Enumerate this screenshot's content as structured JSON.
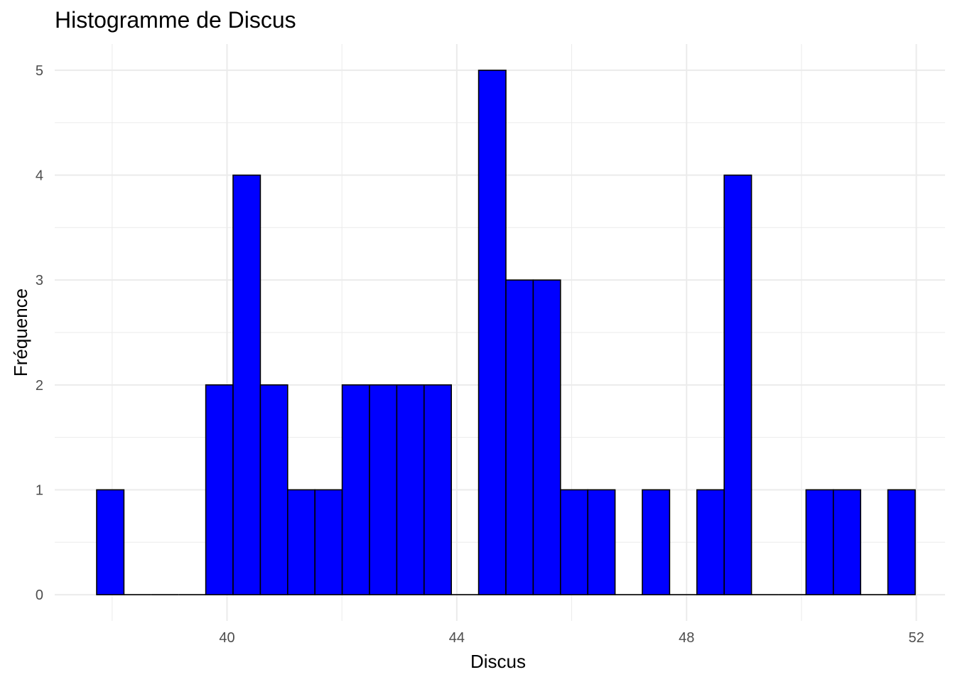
{
  "chart_data": {
    "type": "bar",
    "title": "Histogramme de Discus",
    "xlabel": "Discus",
    "ylabel": "Fréquence",
    "bin_width": 0.475,
    "bins": [
      {
        "start": 37.73,
        "count": 1
      },
      {
        "start": 38.205,
        "count": 0
      },
      {
        "start": 38.68,
        "count": 0
      },
      {
        "start": 39.155,
        "count": 0
      },
      {
        "start": 39.63,
        "count": 2
      },
      {
        "start": 40.105,
        "count": 4
      },
      {
        "start": 40.58,
        "count": 2
      },
      {
        "start": 41.055,
        "count": 1
      },
      {
        "start": 41.53,
        "count": 1
      },
      {
        "start": 42.005,
        "count": 2
      },
      {
        "start": 42.48,
        "count": 2
      },
      {
        "start": 42.955,
        "count": 2
      },
      {
        "start": 43.43,
        "count": 2
      },
      {
        "start": 43.905,
        "count": 0
      },
      {
        "start": 44.38,
        "count": 5
      },
      {
        "start": 44.855,
        "count": 3
      },
      {
        "start": 45.33,
        "count": 3
      },
      {
        "start": 45.805,
        "count": 1
      },
      {
        "start": 46.28,
        "count": 1
      },
      {
        "start": 46.755,
        "count": 0
      },
      {
        "start": 47.23,
        "count": 1
      },
      {
        "start": 47.705,
        "count": 0
      },
      {
        "start": 48.18,
        "count": 1
      },
      {
        "start": 48.655,
        "count": 4
      },
      {
        "start": 49.13,
        "count": 0
      },
      {
        "start": 49.605,
        "count": 0
      },
      {
        "start": 50.08,
        "count": 1
      },
      {
        "start": 50.555,
        "count": 1
      },
      {
        "start": 51.03,
        "count": 0
      },
      {
        "start": 51.505,
        "count": 1
      }
    ],
    "xlim": [
      37.0,
      52.5
    ],
    "ylim": [
      -0.25,
      5.25
    ],
    "xticks": [
      40,
      44,
      48,
      52
    ],
    "yticks": [
      0,
      1,
      2,
      3,
      4,
      5
    ],
    "grid": true,
    "colors": {
      "fill": "#0000FF",
      "outline": "#000000",
      "grid": "#EBEBEB"
    }
  }
}
